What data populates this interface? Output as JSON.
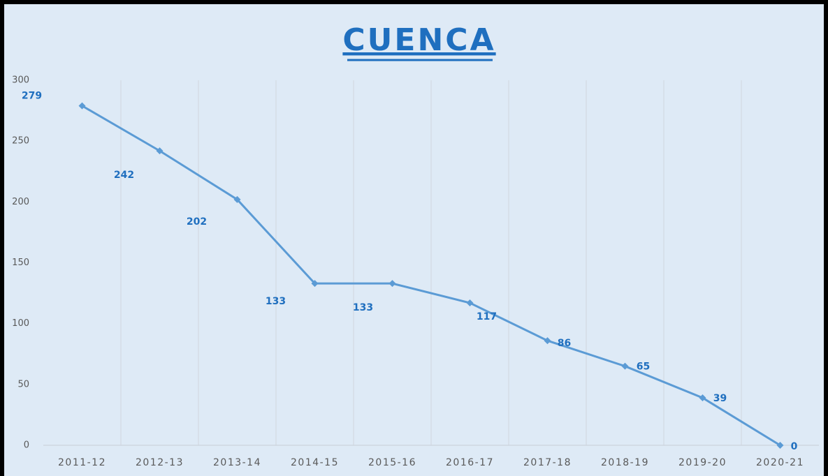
{
  "chart_data": {
    "type": "line",
    "title": "CUENCA",
    "categories": [
      "2011-12",
      "2012-13",
      "2013-14",
      "2014-15",
      "2015-16",
      "2016-17",
      "2017-18",
      "2018-19",
      "2019-20",
      "2020-21"
    ],
    "series": [
      {
        "name": "CUENCA",
        "color": "#5b9bd5",
        "values": [
          279,
          242,
          202,
          133,
          133,
          117,
          86,
          65,
          39,
          0
        ]
      }
    ],
    "ylim": [
      0,
      300
    ],
    "yticks": [
      0,
      50,
      100,
      150,
      200,
      250,
      300
    ],
    "grid": false
  }
}
